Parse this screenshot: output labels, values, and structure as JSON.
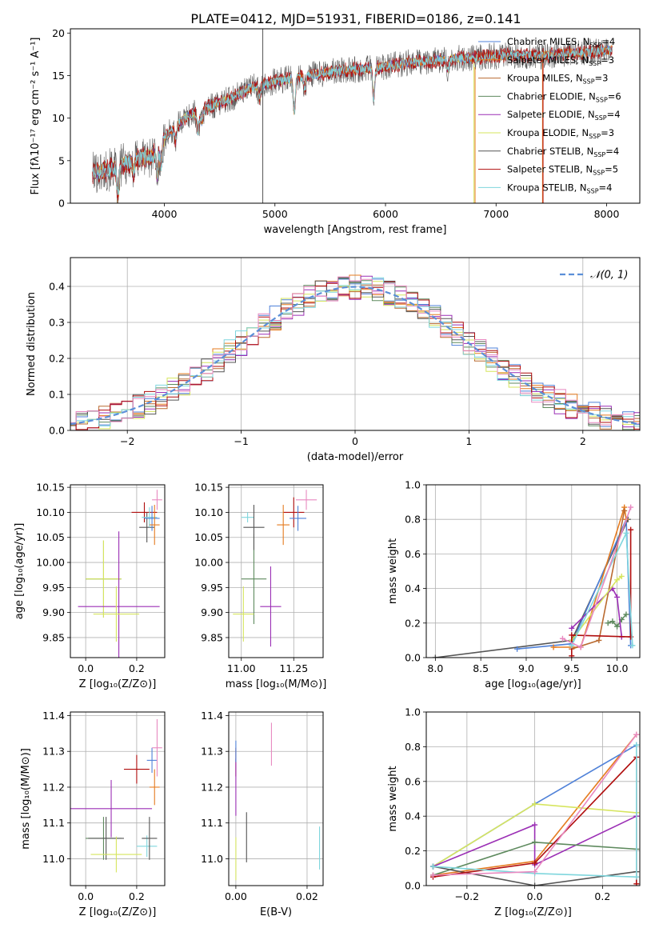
{
  "figure": {
    "title": "PLATE=0412, MJD=51931, FIBERID=0186, z=0.141"
  },
  "colors": {
    "chabrier_miles": "#4f81d8",
    "salpeter_miles": "#e57b1f",
    "kroupa_miles": "#b96a30",
    "chabrier_elodie": "#5e8a5e",
    "salpeter_elodie": "#9b2fb5",
    "kroupa_elodie": "#d6e55e",
    "chabrier_stelib": "#555555",
    "salpeter_stelib": "#b00d0d",
    "kroupa_stelib": "#7fd6dd",
    "pink": "#e889c0",
    "gaussian": "#5b8fd8",
    "grid": "#b0b0b0"
  },
  "chart_data": [
    {
      "id": "spectrum",
      "type": "line",
      "title": "PLATE=0412, MJD=51931, FIBERID=0186, z=0.141",
      "xlabel": "wavelength [Angstrom, rest frame]",
      "ylabel": "Flux [fλ10⁻¹⁷ erg cm⁻² s⁻¹ A⁻¹]",
      "xlim": [
        3150,
        8300
      ],
      "ylim": [
        0,
        20.5
      ],
      "xticks": [
        4000,
        5000,
        6000,
        7000,
        8000
      ],
      "yticks": [
        0,
        5,
        10,
        15,
        20
      ],
      "grid": false,
      "legend_position": "right",
      "legend": [
        {
          "label": "Chabrier MILES, N",
          "sub": "SSP",
          "suffix": "=4",
          "color": "chabrier_miles"
        },
        {
          "label": "Salpeter MILES, N",
          "sub": "SSP",
          "suffix": "=3",
          "color": "salpeter_miles"
        },
        {
          "label": "Kroupa MILES, N",
          "sub": "SSP",
          "suffix": "=3",
          "color": "kroupa_miles"
        },
        {
          "label": "Chabrier ELODIE, N",
          "sub": "SSP",
          "suffix": "=6",
          "color": "chabrier_elodie"
        },
        {
          "label": "Salpeter ELODIE, N",
          "sub": "SSP",
          "suffix": "=4",
          "color": "salpeter_elodie"
        },
        {
          "label": "Kroupa ELODIE, N",
          "sub": "SSP",
          "suffix": "=3",
          "color": "kroupa_elodie"
        },
        {
          "label": "Chabrier STELIB, N",
          "sub": "SSP",
          "suffix": "=4",
          "color": "chabrier_stelib"
        },
        {
          "label": "Salpeter STELIB, N",
          "sub": "SSP",
          "suffix": "=5",
          "color": "salpeter_stelib"
        },
        {
          "label": "Kroupa STELIB, N",
          "sub": "SSP",
          "suffix": "=4",
          "color": "kroupa_stelib"
        }
      ],
      "continuum": {
        "x": [
          3350,
          3500,
          3700,
          3900,
          4000,
          4200,
          4400,
          4600,
          4800,
          5000,
          5200,
          5400,
          5600,
          5800,
          6000,
          6200,
          6400,
          6600,
          6800,
          7000,
          7200,
          7400,
          7600,
          7800,
          8050
        ],
        "y": [
          3.6,
          3.9,
          5.0,
          5.6,
          7.7,
          10.2,
          11.3,
          12.3,
          13.7,
          14.3,
          14.8,
          15.2,
          15.6,
          15.8,
          16.1,
          16.5,
          16.7,
          17.0,
          17.1,
          17.3,
          17.4,
          17.3,
          17.6,
          17.7,
          18.0
        ]
      },
      "absorption_features": [
        {
          "x": 3580,
          "depth": 3.6
        },
        {
          "x": 3720,
          "depth": 1.5
        },
        {
          "x": 3935,
          "depth": 3.0
        },
        {
          "x": 3970,
          "depth": 2.5
        },
        {
          "x": 4102,
          "depth": 1.6
        },
        {
          "x": 4305,
          "depth": 2.4
        },
        {
          "x": 4340,
          "depth": 1.5
        },
        {
          "x": 4861,
          "depth": 1.5
        },
        {
          "x": 5175,
          "depth": 4.0
        },
        {
          "x": 5270,
          "depth": 1.4
        },
        {
          "x": 5893,
          "depth": 3.5
        },
        {
          "x": 6563,
          "depth": 1.2
        }
      ],
      "spikes": [
        {
          "x": 4890,
          "y1": 0,
          "y2": 20.5,
          "color": "chabrier_stelib"
        },
        {
          "x": 6800,
          "y1": 0,
          "y2": 16.5,
          "color": "kroupa_elodie"
        },
        {
          "x": 6810,
          "y1": 0,
          "y2": 16.0,
          "color": "salpeter_miles"
        },
        {
          "x": 7420,
          "y1": 0,
          "y2": 17.5,
          "color": "salpeter_miles"
        },
        {
          "x": 7425,
          "y1": 0,
          "y2": 17.2,
          "color": "salpeter_stelib"
        }
      ]
    },
    {
      "id": "residuals",
      "type": "histogram",
      "xlabel": "(data-model)/error",
      "ylabel": "Normed distribution",
      "xlim": [
        -2.5,
        2.5
      ],
      "ylim": [
        0,
        0.48
      ],
      "xticks": [
        -2,
        -1,
        0,
        1,
        2
      ],
      "yticks": [
        0.0,
        0.1,
        0.2,
        0.3,
        0.4
      ],
      "grid": true,
      "legend_position": "top-right",
      "legend": [
        {
          "label": "𝒩(0, 1)",
          "color": "gaussian",
          "style": "dashed"
        }
      ],
      "bin_width": 0.1,
      "series_colors": [
        "chabrier_miles",
        "salpeter_miles",
        "kroupa_miles",
        "chabrier_elodie",
        "salpeter_elodie",
        "kroupa_elodie",
        "chabrier_stelib",
        "salpeter_stelib",
        "kroupa_stelib",
        "pink"
      ]
    },
    {
      "id": "age_vs_Z",
      "type": "errorbar",
      "xlabel": "Z [log₁₀(Z/Z⊙)]",
      "ylabel": "age  [log₁₀(age/yr)]",
      "xlim": [
        -0.06,
        0.31
      ],
      "ylim": [
        9.81,
        10.155
      ],
      "xticks": [
        0.0,
        0.2
      ],
      "xticklabels": [
        "0.0",
        "0.2"
      ],
      "yticks": [
        9.85,
        9.9,
        9.95,
        10.0,
        10.05,
        10.1,
        10.15
      ],
      "yticklabels": [
        "9.85",
        "9.90",
        "9.95",
        "10.00",
        "10.05",
        "10.10",
        "10.15"
      ],
      "grid": true,
      "points": [
        {
          "x": 0.07,
          "xerr": 0.07,
          "y": 9.967,
          "yerr": 0.077,
          "color": "chabrier_elodie"
        },
        {
          "x": 0.07,
          "xerr": 0.07,
          "y": 9.967,
          "yerr": 0.077,
          "color": "kroupa_elodie"
        },
        {
          "x": 0.13,
          "xerr": 0.16,
          "y": 9.912,
          "yerr": 0.15,
          "color": "salpeter_elodie"
        },
        {
          "x": 0.12,
          "xerr": 0.09,
          "y": 9.897,
          "yerr": 0.055,
          "color": "kroupa_elodie"
        },
        {
          "x": 0.23,
          "xerr": 0.05,
          "y": 10.1,
          "yerr": 0.02,
          "color": "salpeter_stelib"
        },
        {
          "x": 0.24,
          "xerr": 0.03,
          "y": 10.07,
          "yerr": 0.03,
          "color": "chabrier_stelib"
        },
        {
          "x": 0.25,
          "xerr": 0.03,
          "y": 10.09,
          "yerr": 0.02,
          "color": "kroupa_stelib"
        },
        {
          "x": 0.26,
          "xerr": 0.03,
          "y": 10.088,
          "yerr": 0.025,
          "color": "chabrier_miles"
        },
        {
          "x": 0.27,
          "xerr": 0.02,
          "y": 10.075,
          "yerr": 0.04,
          "color": "salpeter_miles"
        },
        {
          "x": 0.28,
          "xerr": 0.02,
          "y": 10.125,
          "yerr": 0.02,
          "color": "pink"
        }
      ]
    },
    {
      "id": "age_vs_mass",
      "type": "errorbar",
      "xlabel": "mass [log₁₀(M/M⊙)]",
      "ylabel": "",
      "xlim": [
        10.94,
        11.39
      ],
      "ylim": [
        9.81,
        10.155
      ],
      "xticks": [
        11.0,
        11.25
      ],
      "xticklabels": [
        "11.00",
        "11.25"
      ],
      "yticks": [
        9.85,
        9.9,
        9.95,
        10.0,
        10.05,
        10.1,
        10.15
      ],
      "yticklabels": [
        "9.85",
        "9.90",
        "9.95",
        "10.00",
        "10.05",
        "10.10",
        "10.15"
      ],
      "grid": true,
      "points": [
        {
          "x": 11.03,
          "xerr": 0.03,
          "y": 10.09,
          "yerr": 0.01,
          "color": "kroupa_stelib"
        },
        {
          "x": 11.06,
          "xerr": 0.06,
          "y": 9.967,
          "yerr": 0.09,
          "color": "chabrier_elodie"
        },
        {
          "x": 11.01,
          "xerr": 0.05,
          "y": 9.897,
          "yerr": 0.055,
          "color": "kroupa_elodie"
        },
        {
          "x": 11.14,
          "xerr": 0.05,
          "y": 9.912,
          "yerr": 0.08,
          "color": "salpeter_elodie"
        },
        {
          "x": 11.06,
          "xerr": 0.05,
          "y": 10.07,
          "yerr": 0.045,
          "color": "chabrier_stelib"
        },
        {
          "x": 11.25,
          "xerr": 0.05,
          "y": 10.1,
          "yerr": 0.03,
          "color": "salpeter_stelib"
        },
        {
          "x": 11.2,
          "xerr": 0.03,
          "y": 10.075,
          "yerr": 0.04,
          "color": "salpeter_miles"
        },
        {
          "x": 11.27,
          "xerr": 0.04,
          "y": 10.088,
          "yerr": 0.025,
          "color": "chabrier_miles"
        },
        {
          "x": 11.31,
          "xerr": 0.05,
          "y": 10.125,
          "yerr": 0.02,
          "color": "pink"
        }
      ]
    },
    {
      "id": "weight_vs_age",
      "type": "line",
      "xlabel": "age  [log₁₀(age/yr)]",
      "ylabel": "mass weight",
      "xlim": [
        7.9,
        10.25
      ],
      "ylim": [
        0,
        1.0
      ],
      "xticks": [
        8.0,
        8.5,
        9.0,
        9.5,
        10.0
      ],
      "xticklabels": [
        "8.0",
        "8.5",
        "9.0",
        "9.5",
        "10.0"
      ],
      "yticks": [
        0.0,
        0.2,
        0.4,
        0.6,
        0.8,
        1.0
      ],
      "yticklabels": [
        "0.0",
        "0.2",
        "0.4",
        "0.6",
        "0.8",
        "1.0"
      ],
      "grid": true,
      "series": [
        {
          "color": "chabrier_stelib",
          "x": [
            8.0,
            9.5,
            10.12
          ],
          "y": [
            0.0,
            0.1,
            0.8
          ]
        },
        {
          "color": "chabrier_miles",
          "x": [
            8.9,
            9.5,
            10.1,
            10.15
          ],
          "y": [
            0.05,
            0.08,
            0.8,
            0.07
          ]
        },
        {
          "color": "salpeter_miles",
          "x": [
            9.3,
            9.6,
            10.08,
            10.1
          ],
          "y": [
            0.06,
            0.06,
            0.87,
            0.8
          ]
        },
        {
          "color": "kroupa_miles",
          "x": [
            9.5,
            9.8,
            10.08
          ],
          "y": [
            0.05,
            0.1,
            0.85
          ]
        },
        {
          "color": "chabrier_elodie",
          "x": [
            9.9,
            9.95,
            10.0,
            10.05,
            10.1
          ],
          "y": [
            0.2,
            0.21,
            0.18,
            0.22,
            0.25
          ]
        },
        {
          "color": "salpeter_elodie",
          "x": [
            9.5,
            9.95,
            10.0,
            10.05
          ],
          "y": [
            0.17,
            0.4,
            0.35,
            0.12
          ]
        },
        {
          "color": "kroupa_elodie",
          "x": [
            9.5,
            10.0,
            10.05
          ],
          "y": [
            0.1,
            0.45,
            0.47
          ]
        },
        {
          "color": "salpeter_stelib",
          "x": [
            9.5,
            9.5,
            10.15,
            10.15
          ],
          "y": [
            0.01,
            0.13,
            0.12,
            0.74
          ]
        },
        {
          "color": "kroupa_stelib",
          "x": [
            9.5,
            10.1,
            10.17
          ],
          "y": [
            0.07,
            0.72,
            0.07
          ]
        },
        {
          "color": "pink",
          "x": [
            9.4,
            9.6,
            10.15
          ],
          "y": [
            0.11,
            0.06,
            0.87
          ]
        }
      ]
    },
    {
      "id": "mass_vs_Z",
      "type": "errorbar",
      "xlabel": "Z [log₁₀(Z/Z⊙)]",
      "ylabel": "mass [log₁₀(M/M⊙)]",
      "xlim": [
        -0.06,
        0.31
      ],
      "ylim": [
        10.925,
        11.41
      ],
      "xticks": [
        0.0,
        0.2
      ],
      "xticklabels": [
        "0.0",
        "0.2"
      ],
      "yticks": [
        11.0,
        11.1,
        11.2,
        11.3,
        11.4
      ],
      "yticklabels": [
        "11.0",
        "11.1",
        "11.2",
        "11.3",
        "11.4"
      ],
      "grid": true,
      "points": [
        {
          "x": 0.07,
          "xerr": 0.07,
          "y": 11.057,
          "yerr": 0.06,
          "color": "chabrier_elodie"
        },
        {
          "x": 0.08,
          "xerr": 0.07,
          "y": 11.057,
          "yerr": 0.06,
          "color": "chabrier_stelib"
        },
        {
          "x": 0.1,
          "xerr": 0.16,
          "y": 11.14,
          "yerr": 0.08,
          "color": "salpeter_elodie"
        },
        {
          "x": 0.12,
          "xerr": 0.1,
          "y": 11.012,
          "yerr": 0.05,
          "color": "kroupa_elodie"
        },
        {
          "x": 0.24,
          "xerr": 0.04,
          "y": 11.035,
          "yerr": 0.03,
          "color": "kroupa_stelib"
        },
        {
          "x": 0.25,
          "xerr": 0.03,
          "y": 11.057,
          "yerr": 0.06,
          "color": "chabrier_stelib"
        },
        {
          "x": 0.2,
          "xerr": 0.05,
          "y": 11.25,
          "yerr": 0.04,
          "color": "salpeter_stelib"
        },
        {
          "x": 0.27,
          "xerr": 0.02,
          "y": 11.2,
          "yerr": 0.05,
          "color": "salpeter_miles"
        },
        {
          "x": 0.26,
          "xerr": 0.02,
          "y": 11.275,
          "yerr": 0.035,
          "color": "chabrier_miles"
        },
        {
          "x": 0.28,
          "xerr": 0.02,
          "y": 11.31,
          "yerr": 0.08,
          "color": "pink"
        }
      ]
    },
    {
      "id": "mass_vs_ebv",
      "type": "errorbar",
      "xlabel": "E(B-V)",
      "ylabel": "",
      "xlim": [
        -0.002,
        0.0245
      ],
      "ylim": [
        10.925,
        11.41
      ],
      "xticks": [
        0.0,
        0.02
      ],
      "xticklabels": [
        "0.00",
        "0.02"
      ],
      "yticks": [
        11.0,
        11.1,
        11.2,
        11.3,
        11.4
      ],
      "yticklabels": [
        "11.0",
        "11.1",
        "11.2",
        "11.3",
        "11.4"
      ],
      "grid": true,
      "points": [
        {
          "x": 0.0,
          "xerr": 0,
          "y": 11.27,
          "yerr": 0.04,
          "color": "salpeter_stelib"
        },
        {
          "x": 0.0,
          "xerr": 0,
          "y": 11.2,
          "yerr": 0.08,
          "color": "salpeter_elodie"
        },
        {
          "x": 0.0,
          "xerr": 0,
          "y": 11.0,
          "yerr": 0.06,
          "color": "kroupa_elodie"
        },
        {
          "x": 0.0,
          "xerr": 0,
          "y": 11.3,
          "yerr": 0.03,
          "color": "chabrier_miles"
        },
        {
          "x": 0.003,
          "xerr": 0,
          "y": 11.06,
          "yerr": 0.07,
          "color": "chabrier_stelib"
        },
        {
          "x": 0.01,
          "xerr": 0,
          "y": 11.32,
          "yerr": 0.06,
          "color": "pink"
        },
        {
          "x": 0.0235,
          "xerr": 0,
          "y": 11.03,
          "yerr": 0.06,
          "color": "kroupa_stelib"
        }
      ]
    },
    {
      "id": "weight_vs_Z",
      "type": "line",
      "xlabel": "Z [log₁₀(Z/Z⊙)]",
      "ylabel": "mass weight",
      "xlim": [
        -0.32,
        0.31
      ],
      "ylim": [
        0,
        1.0
      ],
      "xticks": [
        -0.2,
        0.0,
        0.2
      ],
      "xticklabels": [
        "−0.2",
        "0.0",
        "0.2"
      ],
      "yticks": [
        0.0,
        0.2,
        0.4,
        0.6,
        0.8,
        1.0
      ],
      "yticklabels": [
        "0.0",
        "0.2",
        "0.4",
        "0.6",
        "0.8",
        "1.0"
      ],
      "grid": true,
      "series": [
        {
          "color": "salpeter_miles",
          "x": [
            -0.3,
            0.0,
            0.3
          ],
          "y": [
            0.06,
            0.14,
            0.87
          ]
        },
        {
          "color": "chabrier_miles",
          "x": [
            -0.3,
            0.0,
            0.3
          ],
          "y": [
            0.11,
            0.47,
            0.81
          ]
        },
        {
          "color": "kroupa_elodie",
          "x": [
            -0.3,
            0.0,
            0.3
          ],
          "y": [
            0.11,
            0.47,
            0.42
          ]
        },
        {
          "color": "salpeter_elodie",
          "x": [
            -0.3,
            0.0,
            0.0,
            0.3
          ],
          "y": [
            0.11,
            0.35,
            0.12,
            0.4
          ]
        },
        {
          "color": "chabrier_elodie",
          "x": [
            -0.3,
            0.0,
            0.3
          ],
          "y": [
            0.06,
            0.25,
            0.21
          ]
        },
        {
          "color": "chabrier_stelib",
          "x": [
            -0.3,
            0.0,
            0.3
          ],
          "y": [
            0.11,
            0.0,
            0.08
          ]
        },
        {
          "color": "salpeter_stelib",
          "x": [
            -0.3,
            0.0,
            0.3,
            0.3
          ],
          "y": [
            0.05,
            0.13,
            0.74,
            0.01
          ]
        },
        {
          "color": "kroupa_stelib",
          "x": [
            -0.3,
            0.0,
            0.3,
            0.3
          ],
          "y": [
            0.11,
            0.07,
            0.05,
            0.81
          ]
        },
        {
          "color": "pink",
          "x": [
            -0.3,
            0.0,
            0.3
          ],
          "y": [
            0.06,
            0.08,
            0.87
          ]
        }
      ]
    }
  ]
}
